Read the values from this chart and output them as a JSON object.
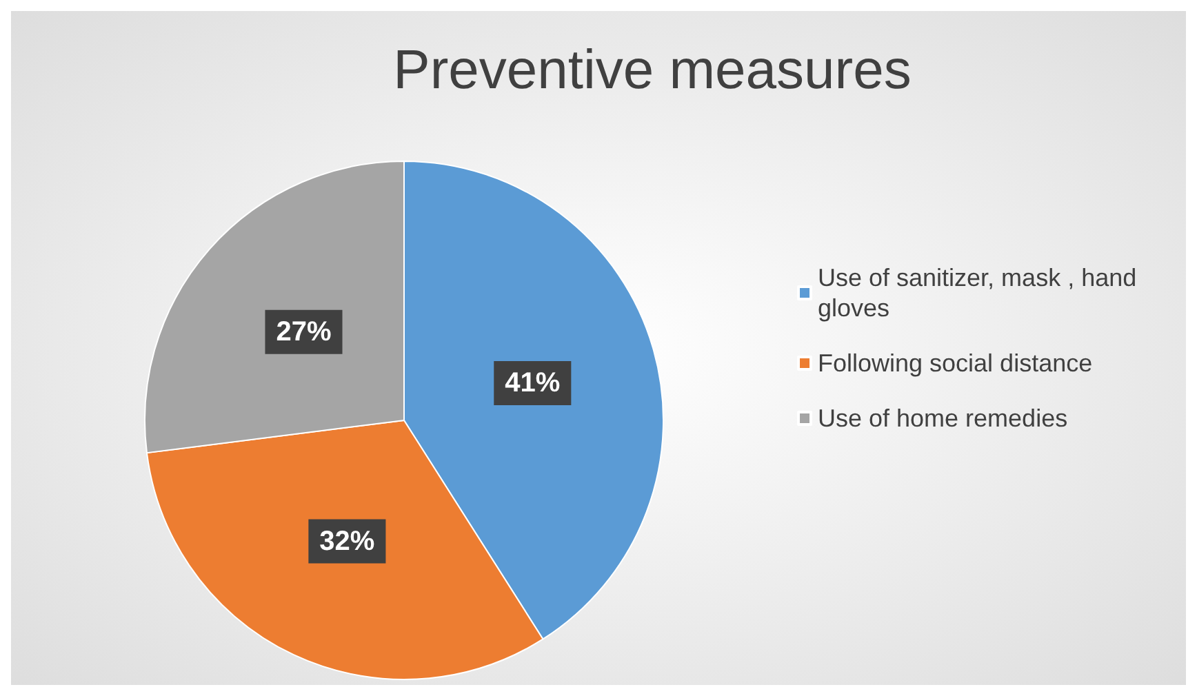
{
  "chart_data": {
    "type": "pie",
    "title": "Preventive measures",
    "categories": [
      "Use of sanitizer, mask , hand gloves",
      "Following social distance",
      "Use of home remedies"
    ],
    "values": [
      41,
      32,
      27
    ],
    "colors": [
      "#5b9bd5",
      "#ed7d31",
      "#a5a5a5"
    ],
    "value_labels": [
      "41%",
      "32%",
      "27%"
    ],
    "legend": "right"
  }
}
